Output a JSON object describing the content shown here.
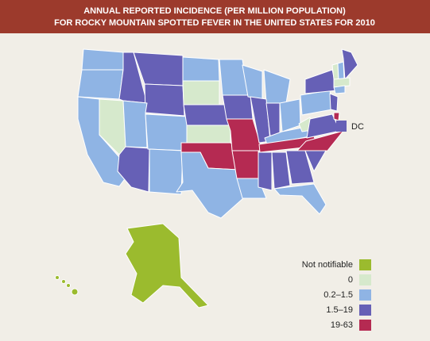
{
  "header": {
    "title": [
      "ANNUAL REPORTED INCIDENCE (PER MILLION POPULATION)",
      "FOR ROCKY MOUNTAIN SPOTTED FEVER IN THE UNITED STATES FOR 2010"
    ]
  },
  "map": {
    "dc_label": "DC"
  },
  "legend": {
    "items": [
      {
        "label": "Not notifiable",
        "color": "#9bbb2e"
      },
      {
        "label": "0",
        "color": "#d6e9cc"
      },
      {
        "label": "0.2–1.5",
        "color": "#8fb4e4"
      },
      {
        "label": "1.5–19",
        "color": "#6660b6"
      },
      {
        "label": "19-63",
        "color": "#b52a52"
      }
    ]
  }
}
